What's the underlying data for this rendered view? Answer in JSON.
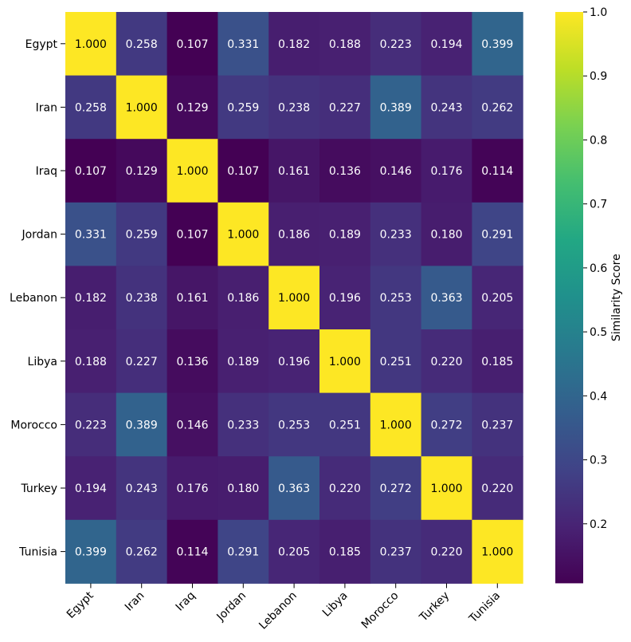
{
  "chart_data": {
    "type": "heatmap",
    "title": "",
    "xlabel": "",
    "ylabel": "",
    "rows": [
      "Egypt",
      "Iran",
      "Iraq",
      "Jordan",
      "Lebanon",
      "Libya",
      "Morocco",
      "Turkey",
      "Tunisia"
    ],
    "columns": [
      "Egypt",
      "Iran",
      "Iraq",
      "Jordan",
      "Lebanon",
      "Libya",
      "Morocco",
      "Turkey",
      "Tunisia"
    ],
    "values": [
      [
        1.0,
        0.258,
        0.107,
        0.331,
        0.182,
        0.188,
        0.223,
        0.194,
        0.399
      ],
      [
        0.258,
        1.0,
        0.129,
        0.259,
        0.238,
        0.227,
        0.389,
        0.243,
        0.262
      ],
      [
        0.107,
        0.129,
        1.0,
        0.107,
        0.161,
        0.136,
        0.146,
        0.176,
        0.114
      ],
      [
        0.331,
        0.259,
        0.107,
        1.0,
        0.186,
        0.189,
        0.233,
        0.18,
        0.291
      ],
      [
        0.182,
        0.238,
        0.161,
        0.186,
        1.0,
        0.196,
        0.253,
        0.363,
        0.205
      ],
      [
        0.188,
        0.227,
        0.136,
        0.189,
        0.196,
        1.0,
        0.251,
        0.22,
        0.185
      ],
      [
        0.223,
        0.389,
        0.146,
        0.233,
        0.253,
        0.251,
        1.0,
        0.272,
        0.237
      ],
      [
        0.194,
        0.243,
        0.176,
        0.18,
        0.363,
        0.22,
        0.272,
        1.0,
        0.22
      ],
      [
        0.399,
        0.262,
        0.114,
        0.291,
        0.205,
        0.185,
        0.237,
        0.22,
        1.0
      ]
    ],
    "value_format": "3 decimals",
    "colormap": "viridis",
    "vmin": 0.107,
    "vmax": 1.0,
    "colorbar": {
      "label": "Similarity Score",
      "ticks": [
        0.2,
        0.3,
        0.4,
        0.5,
        0.6,
        0.7,
        0.8,
        0.9,
        1.0
      ],
      "tick_labels": [
        "0.2",
        "0.3",
        "0.4",
        "0.5",
        "0.6",
        "0.7",
        "0.8",
        "0.9",
        "1.0"
      ]
    },
    "annotation_colors": {
      "light_cell_text": "#000000",
      "dark_cell_text": "#ffffff"
    }
  }
}
